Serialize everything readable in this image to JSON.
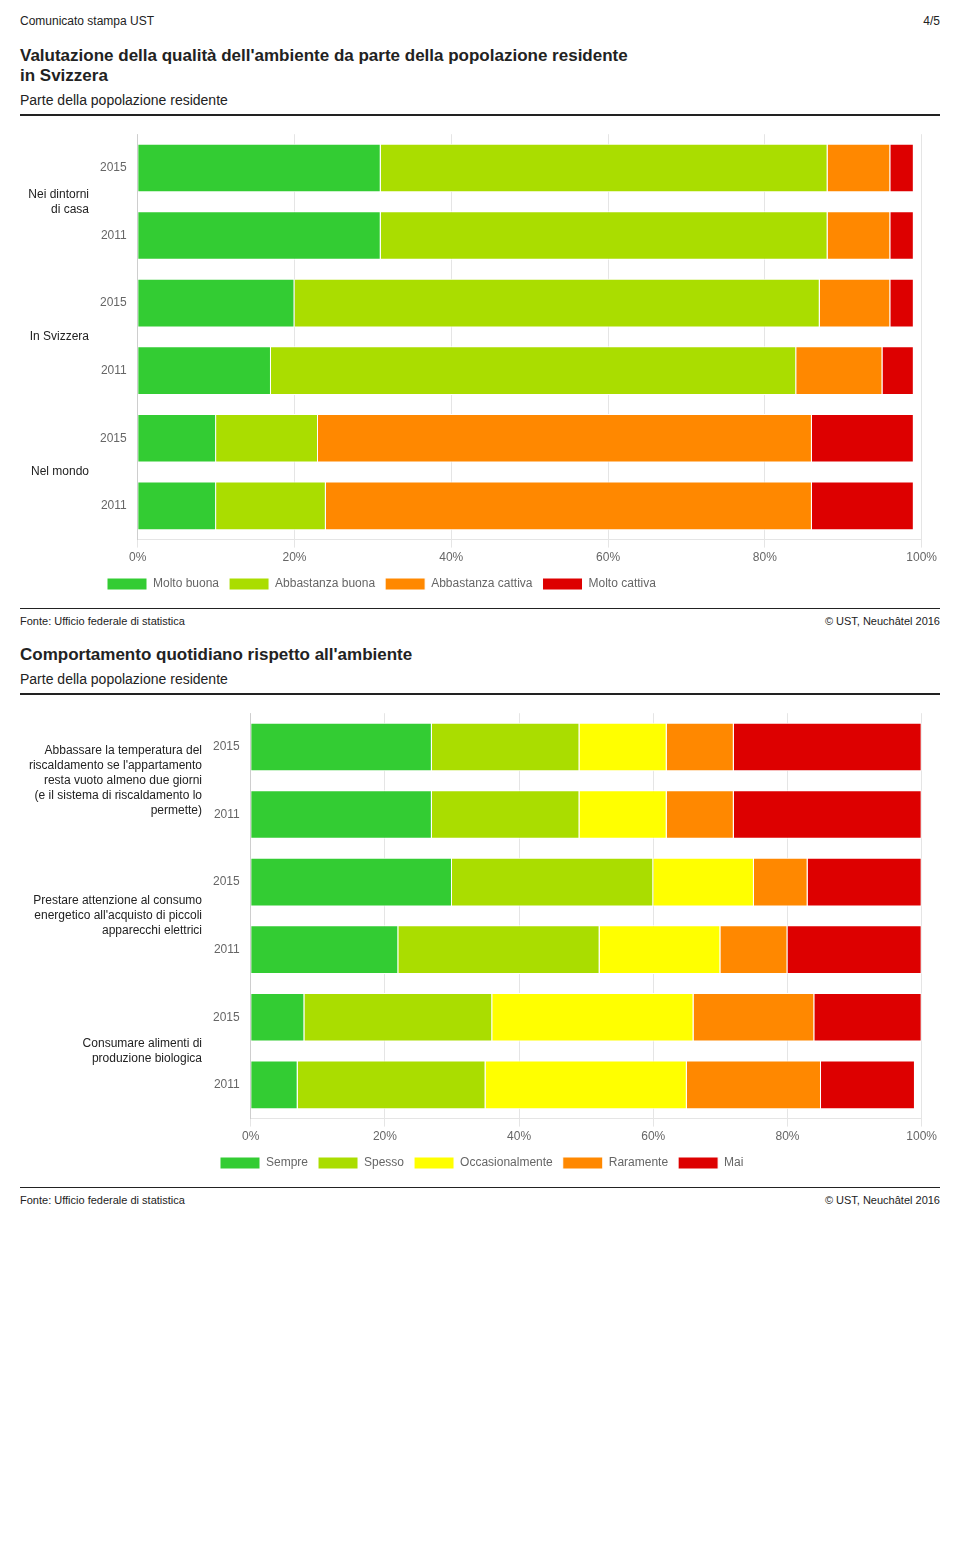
{
  "header": "Comunicato stampa UST",
  "page_num": "4/5",
  "chart_data": [
    {
      "type": "bar",
      "orientation": "horizontal",
      "stacked": true,
      "title": "Valutazione della qualità dell'ambiente da parte della popolazione residente\nin Svizzera",
      "subtitle": "Parte della popolazione residente",
      "groups": [
        "Nei dintorni\ndi casa",
        "In Svizzera",
        "Nel mondo"
      ],
      "categories": [
        "2015",
        "2011",
        "2015",
        "2011",
        "2015",
        "2011"
      ],
      "series": [
        {
          "name": "Molto buona",
          "color": "#33cc33",
          "values": [
            31,
            31,
            20,
            17,
            10,
            10
          ]
        },
        {
          "name": "Abbastanza buona",
          "color": "#aadd00",
          "values": [
            57,
            57,
            67,
            67,
            13,
            14
          ]
        },
        {
          "name": "Abbastanza cattiva",
          "color": "#ff8800",
          "values": [
            8,
            8,
            9,
            11,
            63,
            62
          ]
        },
        {
          "name": "Molto cattiva",
          "color": "#dd0000",
          "values": [
            3,
            3,
            3,
            4,
            13,
            13
          ]
        }
      ],
      "xlim": [
        0,
        100
      ],
      "xticks": [
        {
          "value": 0,
          "label": "0%"
        },
        {
          "value": 20,
          "label": "20%"
        },
        {
          "value": 40,
          "label": "40%"
        },
        {
          "value": 60,
          "label": "60%"
        },
        {
          "value": 80,
          "label": "80%"
        },
        {
          "value": 100,
          "label": "100%"
        }
      ],
      "grid": true,
      "legend": "bottom",
      "annotations": [
        "Fonte: Ufficio federale di statistica",
        "© UST, Neuchâtel 2016"
      ]
    },
    {
      "type": "bar",
      "orientation": "horizontal",
      "stacked": true,
      "title": "Comportamento quotidiano rispetto all'ambiente",
      "subtitle": "Parte della popolazione residente",
      "groups": [
        "Abbassare la temperatura del\nriscaldamento se l'appartamento\nresta vuoto almeno due giorni\n(e il sistema di riscaldamento lo\npermette)",
        "Prestare attenzione al consumo\nenergetico all'acquisto di piccoli\napparecchi elettrici",
        "Consumare alimenti di\nproduzione biologica"
      ],
      "categories": [
        "2015",
        "2011",
        "2015",
        "2011",
        "2015",
        "2011"
      ],
      "series": [
        {
          "name": "Sempre",
          "color": "#33cc33",
          "values": [
            27,
            27,
            30,
            22,
            8,
            7
          ]
        },
        {
          "name": "Spesso",
          "color": "#aadd00",
          "values": [
            22,
            22,
            30,
            30,
            28,
            28
          ]
        },
        {
          "name": "Occasionalmente",
          "color": "#ffff00",
          "values": [
            13,
            13,
            15,
            18,
            30,
            30
          ]
        },
        {
          "name": "Raramente",
          "color": "#ff8800",
          "values": [
            10,
            10,
            8,
            10,
            18,
            20
          ]
        },
        {
          "name": "Mai",
          "color": "#dd0000",
          "values": [
            28,
            28,
            17,
            20,
            16,
            14
          ]
        }
      ],
      "xlim": [
        0,
        100
      ],
      "xticks": [
        {
          "value": 0,
          "label": "0%"
        },
        {
          "value": 20,
          "label": "20%"
        },
        {
          "value": 40,
          "label": "40%"
        },
        {
          "value": 60,
          "label": "60%"
        },
        {
          "value": 80,
          "label": "80%"
        },
        {
          "value": 100,
          "label": "100%"
        }
      ],
      "grid": true,
      "legend": "bottom",
      "annotations": [
        "Fonte: Ufficio federale di statistica",
        "© UST, Neuchâtel 2016"
      ]
    }
  ]
}
